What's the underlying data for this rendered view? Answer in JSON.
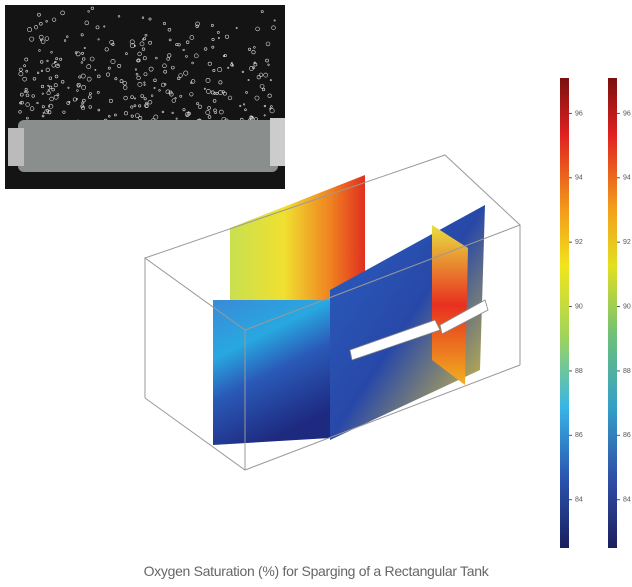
{
  "caption": "Oxygen Saturation (%) for Sparging of a Rectangular Tank",
  "colorbars": [
    {
      "range": [
        82.5,
        97.1
      ],
      "ticks": [
        84,
        86,
        88,
        90,
        92,
        94,
        96
      ]
    },
    {
      "range": [
        82.5,
        97.1
      ],
      "ticks": [
        84,
        86,
        88,
        90,
        92,
        94,
        96
      ]
    }
  ]
}
